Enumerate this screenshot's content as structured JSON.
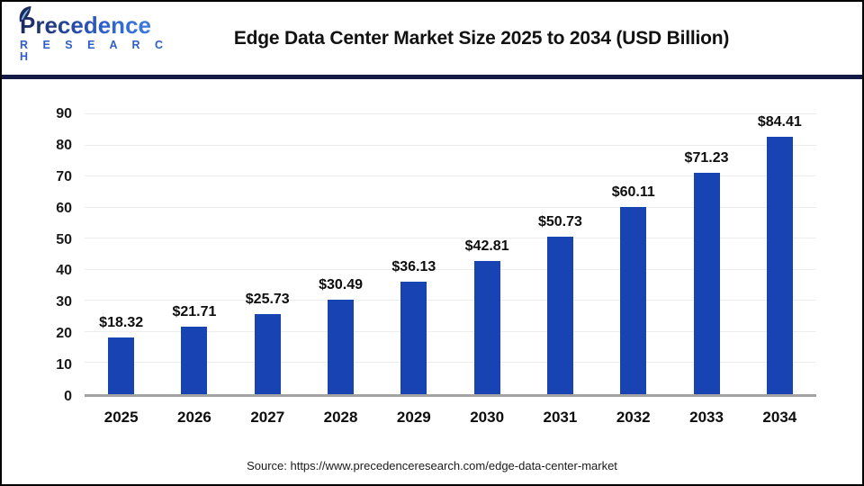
{
  "header": {
    "logo": {
      "text": "Precedence",
      "subtext": "R E S E A R C H"
    },
    "title": "Edge Data Center Market Size 2025 to 2034 (USD Billion)"
  },
  "chart_data": {
    "type": "bar",
    "title": "Edge Data Center Market Size 2025 to 2034 (USD Billion)",
    "categories": [
      "2025",
      "2026",
      "2027",
      "2028",
      "2029",
      "2030",
      "2031",
      "2032",
      "2033",
      "2034"
    ],
    "values": [
      18.32,
      21.71,
      25.73,
      30.49,
      36.13,
      42.81,
      50.73,
      60.11,
      71.23,
      84.41
    ],
    "value_prefix": "$",
    "xlabel": "",
    "ylabel": "",
    "ylim": [
      0,
      90
    ],
    "ytick_step": 10,
    "grid": true,
    "legend": "none",
    "bar_color": "#1743b3"
  },
  "footer": {
    "source": "Source: https://www.precedenceresearch.com/edge-data-center-market"
  },
  "colors": {
    "bar": "#1743b3",
    "divider": "#151a45",
    "gridline": "#ededed",
    "baseline": "#a3a3a3",
    "logo_dark_navy": "#1d2a5e",
    "logo_blue": "#2e5fc9"
  }
}
